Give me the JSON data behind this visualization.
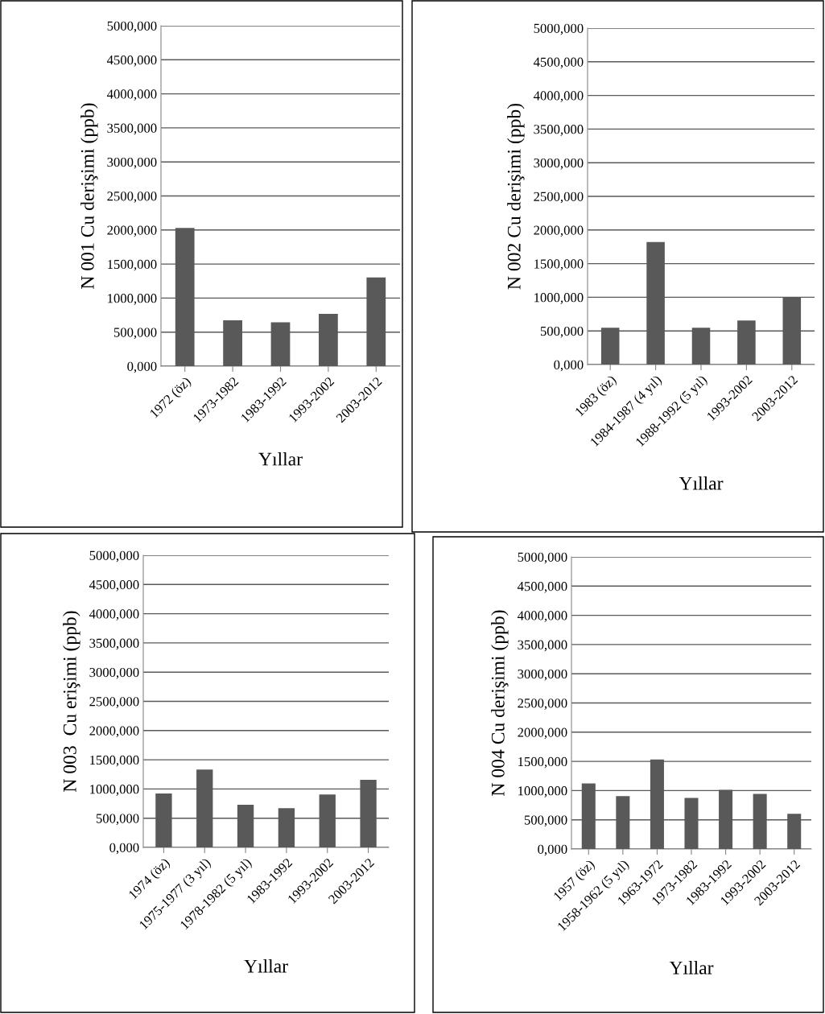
{
  "chart_data": [
    {
      "type": "bar",
      "ylabel": "N 001 Cu derişimi (ppb)",
      "xlabel": "Yıllar",
      "categories": [
        "1972 (öz)",
        "1973-1982",
        "1983-1992",
        "1993-2002",
        "2003-2012"
      ],
      "values": [
        2030,
        675,
        643,
        767,
        1302
      ],
      "color": "#595959",
      "ylim": [
        0,
        5000
      ],
      "yticks": [
        {
          "value": 0,
          "label": "0,000"
        },
        {
          "value": 500,
          "label": "500,000"
        },
        {
          "value": 1000,
          "label": "1000,000"
        },
        {
          "value": 1500,
          "label": "1500,000"
        },
        {
          "value": 2000,
          "label": "2000,000"
        },
        {
          "value": 2500,
          "label": "2500,000"
        },
        {
          "value": 3000,
          "label": "3000,000"
        },
        {
          "value": 3500,
          "label": "3500,000"
        },
        {
          "value": 4000,
          "label": "4000,000"
        },
        {
          "value": 4500,
          "label": "4500,000"
        },
        {
          "value": 5000,
          "label": "5000,000"
        }
      ],
      "grid": "y"
    },
    {
      "type": "bar",
      "ylabel": "N 002 Cu derişimi (ppb)",
      "xlabel": "Yıllar",
      "categories": [
        "1983 (öz)",
        "1984-1987 (4 yıl)",
        "1988-1992 (5 yıl)",
        "1993-2002",
        "2003-2012"
      ],
      "values": [
        547,
        1820,
        547,
        655,
        1000
      ],
      "color": "#595959",
      "ylim": [
        0,
        5000
      ],
      "yticks": [
        {
          "value": 0,
          "label": "0,000"
        },
        {
          "value": 500,
          "label": "500,000"
        },
        {
          "value": 1000,
          "label": "1000,000"
        },
        {
          "value": 1500,
          "label": "1500,000"
        },
        {
          "value": 2000,
          "label": "2000,000"
        },
        {
          "value": 2500,
          "label": "2500,000"
        },
        {
          "value": 3000,
          "label": "3000,000"
        },
        {
          "value": 3500,
          "label": "3500,000"
        },
        {
          "value": 4000,
          "label": "4000,000"
        },
        {
          "value": 4500,
          "label": "4500,000"
        },
        {
          "value": 5000,
          "label": "5000,000"
        }
      ],
      "grid": "y"
    },
    {
      "type": "bar",
      "ylabel": "N 003  Cu erişimi (ppb)",
      "xlabel": "Yıllar",
      "categories": [
        "1974 (öz)",
        "1975-1977 (3 yıl)",
        "1978-1982 (5 yıl)",
        "1983-1992",
        "1993-2002",
        "2003-2012"
      ],
      "values": [
        924,
        1332,
        729,
        673,
        905,
        1156
      ],
      "color": "#595959",
      "ylim": [
        0,
        5000
      ],
      "yticks": [
        {
          "value": 0,
          "label": "0,000"
        },
        {
          "value": 500,
          "label": "500,000"
        },
        {
          "value": 1000,
          "label": "1000,000"
        },
        {
          "value": 1500,
          "label": "1500,000"
        },
        {
          "value": 2000,
          "label": "2000,000"
        },
        {
          "value": 2500,
          "label": "2500,000"
        },
        {
          "value": 3000,
          "label": "3000,000"
        },
        {
          "value": 3500,
          "label": "3500,000"
        },
        {
          "value": 4000,
          "label": "4000,000"
        },
        {
          "value": 4500,
          "label": "4500,000"
        },
        {
          "value": 5000,
          "label": "5000,000"
        }
      ],
      "grid": "y"
    },
    {
      "type": "bar",
      "ylabel": "N 004 Cu derişimi (ppb)",
      "xlabel": "Yıllar",
      "categories": [
        "1957 (öz)",
        "1958-1962 (5 yıl)",
        "1963-1972",
        "1973-1982",
        "1983-1992",
        "1993-2002",
        "2003-2012"
      ],
      "values": [
        1123,
        905,
        1532,
        873,
        1012,
        942,
        603
      ],
      "color": "#595959",
      "ylim": [
        0,
        5000
      ],
      "yticks": [
        {
          "value": 0,
          "label": "0,000"
        },
        {
          "value": 500,
          "label": "500,000"
        },
        {
          "value": 1000,
          "label": "1000,000"
        },
        {
          "value": 1500,
          "label": "1500,000"
        },
        {
          "value": 2000,
          "label": "2000,000"
        },
        {
          "value": 2500,
          "label": "2500,000"
        },
        {
          "value": 3000,
          "label": "3000,000"
        },
        {
          "value": 3500,
          "label": "3500,000"
        },
        {
          "value": 4000,
          "label": "4000,000"
        },
        {
          "value": 4500,
          "label": "4500,000"
        },
        {
          "value": 5000,
          "label": "5000,000"
        }
      ],
      "grid": "y"
    }
  ]
}
